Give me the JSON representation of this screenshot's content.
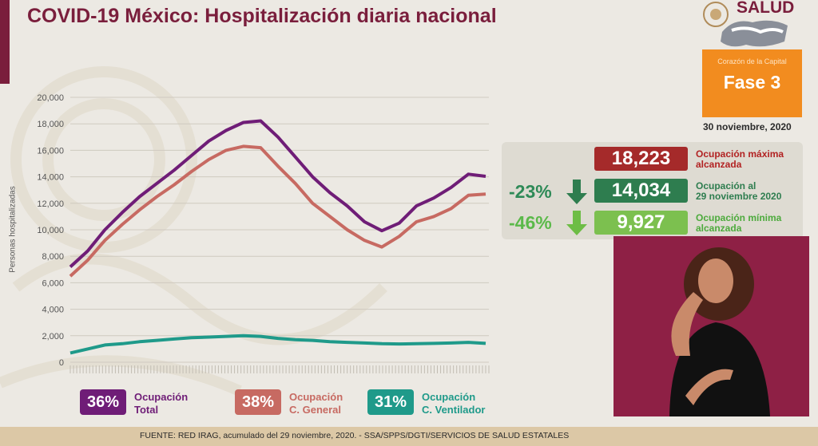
{
  "title": "COVID-19 México: Hospitalización diaria nacional",
  "brand": {
    "salud": "SALUD",
    "city": "Corazón de la Capital"
  },
  "fase": "Fase 3",
  "date": "30 noviembre, 2020",
  "stats": {
    "max": {
      "value": "18,223",
      "label1": "Ocupación máxima",
      "label2": "alcanzada",
      "color": "#a52a2a"
    },
    "current": {
      "value": "14,034",
      "label1": "Ocupación al",
      "label2": "29 noviembre 2020",
      "color": "#2e7d4f",
      "change": "-23%"
    },
    "min": {
      "value": "9,927",
      "label1": "Ocupación mínima",
      "label2": "alcanzada",
      "color": "#7cc04f",
      "change": "-46%"
    }
  },
  "legend": [
    {
      "pct": "36%",
      "line1": "Ocupación",
      "line2": "Total",
      "color": "#6f1d77"
    },
    {
      "pct": "38%",
      "line1": "Ocupación",
      "line2": "C. General",
      "color": "#c76a62"
    },
    {
      "pct": "31%",
      "line1": "Ocupación",
      "line2": "C. Ventilador",
      "color": "#1f9a8a"
    }
  ],
  "footer": "FUENTE: RED IRAG, acumulado del 29 noviembre, 2020.  -   SSA/SPPS/DGTI/SERVICIOS DE SALUD ESTATALES",
  "chart_data": {
    "type": "line",
    "ylabel": "Personas hospitalizadas",
    "ylim": [
      0,
      20000
    ],
    "yticks": [
      "0",
      "2,000",
      "4,000",
      "6,000",
      "8,000",
      "10,000",
      "12,000",
      "14,000",
      "16,000",
      "18,000",
      "20,000"
    ],
    "grid": true,
    "series": [
      {
        "name": "Ocupación Total",
        "color": "#6f1d77",
        "values": [
          7200,
          8400,
          10000,
          11300,
          12500,
          13500,
          14500,
          15600,
          16700,
          17500,
          18100,
          18223,
          17000,
          15500,
          14000,
          12800,
          11800,
          10600,
          9927,
          10500,
          11800,
          12400,
          13200,
          14200,
          14034
        ]
      },
      {
        "name": "Ocupación C. General",
        "color": "#c76a62",
        "values": [
          6500,
          7700,
          9200,
          10400,
          11500,
          12500,
          13400,
          14400,
          15300,
          16000,
          16300,
          16200,
          14800,
          13500,
          12000,
          11000,
          10000,
          9200,
          8700,
          9500,
          10600,
          11000,
          11600,
          12600,
          12700
        ]
      },
      {
        "name": "Ocupación C. Ventilador",
        "color": "#1f9a8a",
        "values": [
          700,
          1000,
          1300,
          1400,
          1550,
          1650,
          1750,
          1850,
          1900,
          1950,
          2000,
          1950,
          1800,
          1700,
          1650,
          1550,
          1500,
          1450,
          1400,
          1380,
          1400,
          1420,
          1450,
          1500,
          1420
        ]
      }
    ]
  }
}
